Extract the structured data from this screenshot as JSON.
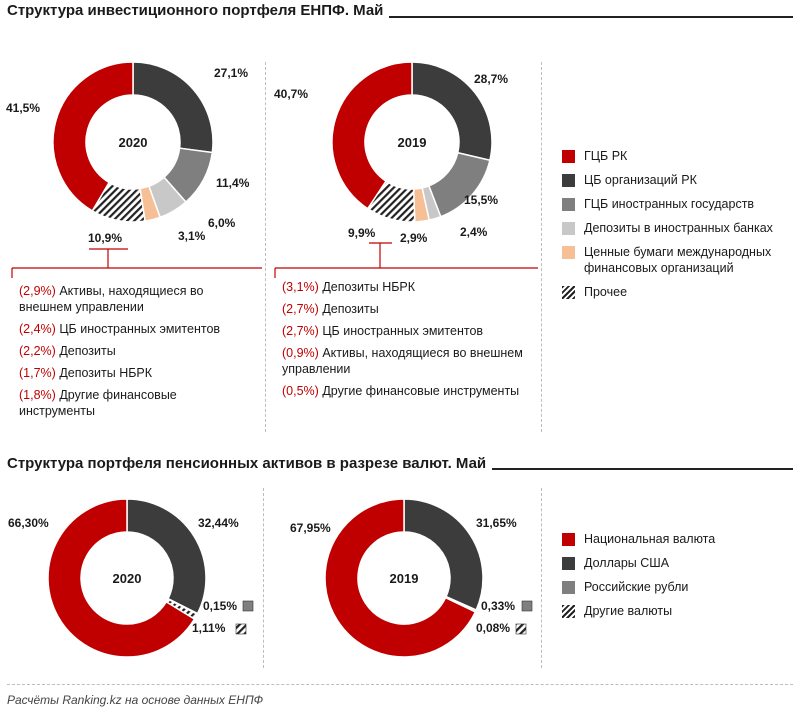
{
  "section1": {
    "title": "Структура инвестиционного портфеля ЕНПФ. Май"
  },
  "section2": {
    "title": "Структура портфеля пенсионных активов в разрезе валют. Май"
  },
  "footnote": "Расчёты Ranking.kz на основе данных ЕНПФ",
  "colors": {
    "red": "#c00000",
    "dark": "#3c3c3c",
    "gray": "#7f7f7f",
    "light": "#c8c8c8",
    "peach": "#f7bf95",
    "accent": "#c00000"
  },
  "legend1": [
    {
      "key": "red",
      "label": "ГЦБ РК"
    },
    {
      "key": "dark",
      "label": "ЦБ организаций РК"
    },
    {
      "key": "gray",
      "label": "ГЦБ иностранных государств"
    },
    {
      "key": "light",
      "label": "Депозиты в иностранных банках"
    },
    {
      "key": "peach",
      "label": "Ценные бумаги международных финансовых организаций"
    },
    {
      "key": "hatch",
      "label": "Прочее"
    }
  ],
  "legend2": [
    {
      "key": "red",
      "label": "Национальная валюта"
    },
    {
      "key": "dark",
      "label": "Доллары США"
    },
    {
      "key": "gray",
      "label": "Российские рубли"
    },
    {
      "key": "hatch",
      "label": "Другие валюты"
    }
  ],
  "chart_data": [
    {
      "type": "pie",
      "donut": true,
      "center_label": "2020",
      "title": "Структура инвестиционного портфеля ЕНПФ. Май",
      "slices": [
        {
          "name": "ЦБ организаций РК",
          "value": 27.1,
          "label": "27,1%",
          "key": "dark"
        },
        {
          "name": "ГЦБ иностранных государств",
          "value": 11.4,
          "label": "11,4%",
          "key": "gray"
        },
        {
          "name": "Депозиты в иностранных банках",
          "value": 6.0,
          "label": "6,0%",
          "key": "light"
        },
        {
          "name": "Ценные бумаги международных финансовых организаций",
          "value": 3.1,
          "label": "3,1%",
          "key": "peach"
        },
        {
          "name": "Прочее",
          "value": 10.9,
          "label": "10,9%",
          "key": "hatch"
        },
        {
          "name": "ГЦБ РК",
          "value": 41.5,
          "label": "41,5%",
          "key": "red"
        }
      ],
      "breakdown": [
        {
          "value": "(2,9%)",
          "text": "Активы, находящиеся во внешнем управлении"
        },
        {
          "value": "(2,4%)",
          "text": "ЦБ иностранных эмитентов"
        },
        {
          "value": "(2,2%)",
          "text": "Депозиты"
        },
        {
          "value": "(1,7%)",
          "text": "Депозиты НБРК"
        },
        {
          "value": "(1,8%)",
          "text": "Другие финансовые инструменты"
        }
      ]
    },
    {
      "type": "pie",
      "donut": true,
      "center_label": "2019",
      "title": "Структура инвестиционного портфеля ЕНПФ. Май",
      "slices": [
        {
          "name": "ЦБ организаций РК",
          "value": 28.7,
          "label": "28,7%",
          "key": "dark"
        },
        {
          "name": "ГЦБ иностранных государств",
          "value": 15.5,
          "label": "15,5%",
          "key": "gray"
        },
        {
          "name": "Депозиты в иностранных банках",
          "value": 2.4,
          "label": "2,4%",
          "key": "light"
        },
        {
          "name": "Ценные бумаги международных финансовых организаций",
          "value": 2.9,
          "label": "2,9%",
          "key": "peach"
        },
        {
          "name": "Прочее",
          "value": 9.9,
          "label": "9,9%",
          "key": "hatch"
        },
        {
          "name": "ГЦБ РК",
          "value": 40.7,
          "label": "40,7%",
          "key": "red"
        }
      ],
      "breakdown": [
        {
          "value": "(3,1%)",
          "text": "Депозиты НБРК"
        },
        {
          "value": "(2,7%)",
          "text": "Депозиты"
        },
        {
          "value": "(2,7%)",
          "text": "ЦБ иностранных эмитентов"
        },
        {
          "value": "(0,9%)",
          "text": "Активы, находящиеся во внешнем управлении"
        },
        {
          "value": "(0,5%)",
          "text": "Другие финансовые инструменты"
        }
      ]
    },
    {
      "type": "pie",
      "donut": true,
      "center_label": "2020",
      "title": "Структура портфеля пенсионных активов в разрезе валют. Май",
      "slices": [
        {
          "name": "Доллары США",
          "value": 32.44,
          "label": "32,44%",
          "key": "dark"
        },
        {
          "name": "Российские рубли",
          "value": 0.15,
          "label": "0,15%",
          "key": "gray"
        },
        {
          "name": "Другие валюты",
          "value": 1.11,
          "label": "1,11%",
          "key": "hatch"
        },
        {
          "name": "Национальная валюта",
          "value": 66.3,
          "label": "66,30%",
          "key": "red"
        }
      ]
    },
    {
      "type": "pie",
      "donut": true,
      "center_label": "2019",
      "title": "Структура портфеля пенсионных активов в разрезе валют. Май",
      "slices": [
        {
          "name": "Доллары США",
          "value": 31.65,
          "label": "31,65%",
          "key": "dark"
        },
        {
          "name": "Российские рубли",
          "value": 0.33,
          "label": "0,33%",
          "key": "gray"
        },
        {
          "name": "Другие валюты",
          "value": 0.08,
          "label": "0,08%",
          "key": "hatch"
        },
        {
          "name": "Национальная валюта",
          "value": 67.95,
          "label": "67,95%",
          "key": "red"
        }
      ]
    }
  ]
}
